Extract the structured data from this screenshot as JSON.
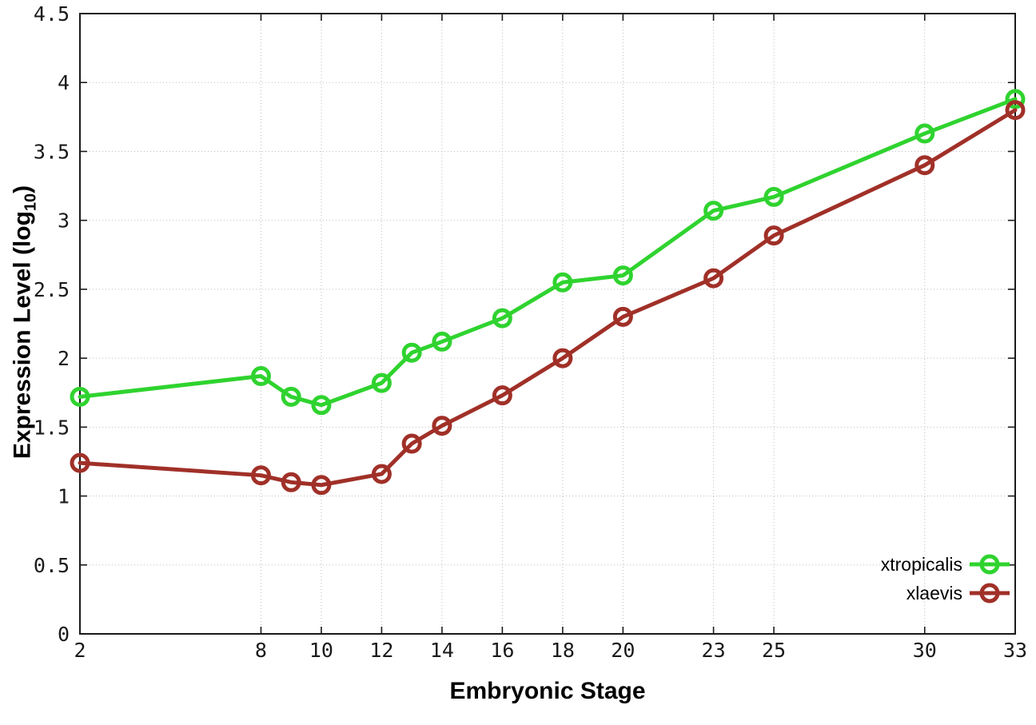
{
  "titles": {
    "xlabel": "Embryonic Stage",
    "ylabel_pre": "Expression Level (log",
    "ylabel_sub": "10",
    "ylabel_post": ")"
  },
  "chart_data": {
    "type": "line",
    "x": [
      2,
      8,
      9,
      10,
      12,
      13,
      14,
      16,
      18,
      20,
      23,
      25,
      30,
      33
    ],
    "series": [
      {
        "name": "xtropicalis",
        "color": "#2fd32f",
        "values": [
          1.72,
          1.87,
          1.72,
          1.66,
          1.82,
          2.04,
          2.12,
          2.29,
          2.55,
          2.6,
          3.07,
          3.17,
          3.63,
          3.88
        ]
      },
      {
        "name": "xlaevis",
        "color": "#a03028",
        "values": [
          1.24,
          1.15,
          1.1,
          1.08,
          1.16,
          1.38,
          1.51,
          1.73,
          2.0,
          2.3,
          2.58,
          2.89,
          3.4,
          3.8
        ]
      }
    ],
    "title": "",
    "xlabel": "Embryonic Stage",
    "ylabel": "Expression Level (log10)",
    "xlim": [
      2,
      33
    ],
    "ylim": [
      0,
      4.5
    ],
    "x_ticks": [
      2,
      8,
      10,
      12,
      14,
      16,
      18,
      20,
      23,
      25,
      30,
      33
    ],
    "x_tick_labels": [
      "2",
      "8",
      "10",
      "12",
      "14",
      "16",
      "18",
      "20",
      "23",
      "25",
      "30",
      "33"
    ],
    "y_ticks": [
      0,
      0.5,
      1,
      1.5,
      2,
      2.5,
      3,
      3.5,
      4,
      4.5
    ],
    "y_tick_labels": [
      "0",
      "0.5",
      "1",
      "1.5",
      "2",
      "2.5",
      "3",
      "3.5",
      "4",
      "4.5"
    ],
    "grid": true,
    "grid_style": "dotted",
    "legend_position": "bottom-right",
    "marker": "open-circle",
    "colors": {
      "background": "#ffffff",
      "border": "#1a1a1a",
      "grid": "#bdbdbd",
      "tick_text": "#1a1a1a"
    }
  }
}
